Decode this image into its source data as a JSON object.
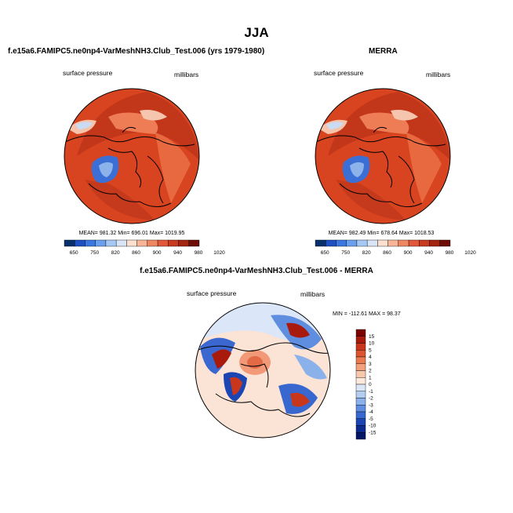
{
  "title": "JJA",
  "chart_data": [
    {
      "type": "heatmap",
      "panel_title": "f.e15a6.FAMIPC5.ne0np4-VarMeshNH3.Club_Test.006 (yrs 1979-1980)",
      "left_label": "surface pressure",
      "right_label": "millibars",
      "stats": "MEAN= 981.32  Min= 696.01  Max= 1019.95",
      "colorbar_ticks": [
        "650",
        "750",
        "820",
        "860",
        "900",
        "940",
        "980",
        "1020"
      ],
      "colorbar_colors": [
        "#08306b",
        "#1f4fc0",
        "#3a78e0",
        "#6aa0ee",
        "#a6c8f4",
        "#d8e6f7",
        "#fde0cd",
        "#f9b596",
        "#f08763",
        "#e2583a",
        "#c93a1f",
        "#a42511",
        "#6e0d05"
      ]
    },
    {
      "type": "heatmap",
      "panel_title": "MERRA",
      "left_label": "surface pressure",
      "right_label": "millibars",
      "stats": "MEAN= 982.49  Min= 678.64  Max= 1018.53",
      "colorbar_ticks": [
        "650",
        "750",
        "820",
        "860",
        "900",
        "940",
        "980",
        "1020"
      ],
      "colorbar_colors": [
        "#08306b",
        "#1f4fc0",
        "#3a78e0",
        "#6aa0ee",
        "#a6c8f4",
        "#d8e6f7",
        "#fde0cd",
        "#f9b596",
        "#f08763",
        "#e2583a",
        "#c93a1f",
        "#a42511",
        "#6e0d05"
      ]
    },
    {
      "type": "heatmap",
      "panel_title": "f.e15a6.FAMIPC5.ne0np4-VarMeshNH3.Club_Test.006 - MERRA",
      "left_label": "surface pressure",
      "right_label": "millibars",
      "stats": "MIN = -112.61  MAX =  98.37",
      "colorbar_ticks": [
        "15",
        "10",
        "5",
        "4",
        "3",
        "2",
        "1",
        "0",
        "-1",
        "-2",
        "-3",
        "-4",
        "-5",
        "-10",
        "-15"
      ],
      "colorbar_colors": [
        "#7a0000",
        "#a81b0c",
        "#c8361c",
        "#dc5430",
        "#ea7a50",
        "#f3a07c",
        "#f8c8ad",
        "#fde8dc",
        "#dbe6f8",
        "#b3cdf1",
        "#8bb1ea",
        "#5f8de0",
        "#3868cf",
        "#1c45b4",
        "#0c2a8f",
        "#041766"
      ]
    }
  ]
}
